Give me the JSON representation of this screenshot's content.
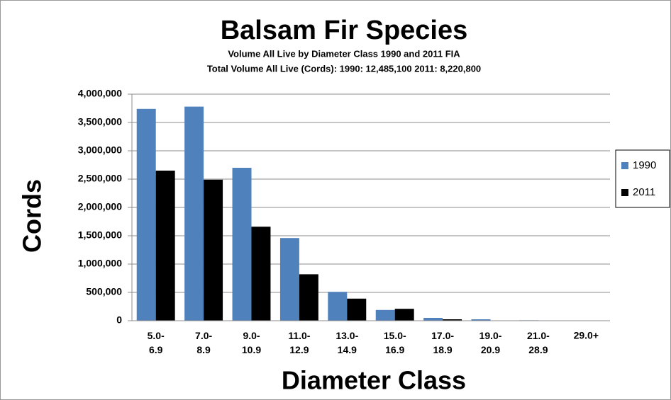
{
  "chart_data": {
    "type": "bar",
    "title": "Balsam Fir Species",
    "subtitle": [
      "Volume All Live by Diameter Class 1990 and 2011 FIA",
      "Total Volume All Live (Cords): 1990: 12,485,100   2011:  8,220,800"
    ],
    "x_label": "Diameter Class",
    "y_label": "Cords",
    "categories": [
      "5.0-\n6.9",
      "7.0-\n8.9",
      "9.0-\n10.9",
      "11.0-\n12.9",
      "13.0-\n14.9",
      "15.0-\n16.9",
      "17.0-\n18.9",
      "19.0-\n20.9",
      "21.0-\n28.9",
      "29.0+"
    ],
    "series": [
      {
        "name": "1990",
        "color": "#4f81bd",
        "values": [
          3740000,
          3780000,
          2700000,
          1460000,
          510000,
          190000,
          50000,
          25000,
          8000,
          0
        ]
      },
      {
        "name": "2011",
        "color": "#000000",
        "values": [
          2650000,
          2490000,
          1660000,
          820000,
          390000,
          210000,
          25000,
          5000,
          2000,
          0
        ]
      }
    ],
    "ylim": [
      0,
      4000000
    ],
    "yticks": [
      0,
      {
        "value": 500000,
        "label": "500,000"
      },
      {
        "value": 1000000,
        "label": "1,000,000"
      },
      {
        "value": 1500000,
        "label": "1,500,000"
      },
      {
        "value": 2000000,
        "label": "2,000,000"
      },
      {
        "value": 2500000,
        "label": "2,500,000"
      },
      {
        "value": 3000000,
        "label": "3,000,000"
      },
      {
        "value": 3500000,
        "label": "3,500,000"
      },
      {
        "value": 4000000,
        "label": "4,000,000"
      }
    ],
    "grid": true,
    "legend": "right"
  }
}
